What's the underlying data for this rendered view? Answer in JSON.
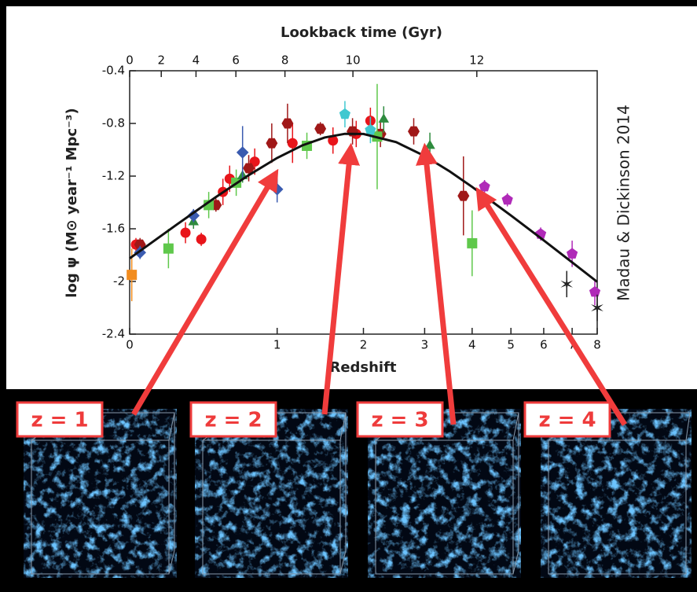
{
  "chart_data": {
    "type": "scatter",
    "x_label": "Redshift",
    "x2_label": "Lookback time (Gyr)",
    "y_label": "log ψ (M⊙ year⁻¹ Mpc⁻³)",
    "annotation": "Madau & Dickinson 2014",
    "xscale": "log1p",
    "xlim": [
      0,
      8
    ],
    "xticks": [
      0,
      1,
      2,
      3,
      4,
      5,
      6,
      7,
      8
    ],
    "x2ticks": [
      0,
      2,
      4,
      6,
      8,
      10,
      12
    ],
    "ylim": [
      -2.4,
      -0.4
    ],
    "yticks": [
      -2.4,
      -2,
      -1.6,
      -1.2,
      -0.8,
      -0.4
    ],
    "fit": {
      "color": "#111111",
      "x": [
        0,
        0.25,
        0.5,
        0.75,
        1,
        1.25,
        1.5,
        1.75,
        2,
        2.5,
        3,
        3.5,
        4,
        5,
        6,
        7,
        8
      ],
      "values": [
        -1.825,
        -1.566,
        -1.359,
        -1.193,
        -1.062,
        -0.967,
        -0.907,
        -0.879,
        -0.88,
        -0.942,
        -1.047,
        -1.164,
        -1.282,
        -1.499,
        -1.688,
        -1.855,
        -2.003
      ]
    },
    "series": [
      {
        "color": "#e8141a",
        "marker": "circle",
        "x": [
          0.03,
          0.3,
          0.4,
          0.55,
          0.6,
          0.8,
          1.15,
          1.6,
          2.1,
          1.9
        ],
        "values": [
          -1.72,
          -1.63,
          -1.68,
          -1.32,
          -1.22,
          -1.09,
          -0.95,
          -0.93,
          -0.78,
          -0.88
        ],
        "yerr": [
          0.05,
          0.08,
          0.05,
          0.1,
          0.1,
          0.1,
          0.15,
          0.1,
          0.1,
          0.1
        ]
      },
      {
        "color": "#a01818",
        "marker": "hexagon",
        "x": [
          0.05,
          0.5,
          0.75,
          0.95,
          1.1,
          1.45,
          1.85,
          2.25,
          2.8,
          3.8
        ],
        "values": [
          -1.72,
          -1.42,
          -1.14,
          -0.95,
          -0.8,
          -0.84,
          -0.86,
          -0.88,
          -0.86,
          -1.35
        ],
        "yerr": [
          0.05,
          0.05,
          0.1,
          0.15,
          0.15,
          0.05,
          0.1,
          0.1,
          0.1,
          0.3
        ]
      },
      {
        "color": "#5fc84b",
        "marker": "square",
        "x": [
          0.2,
          0.45,
          0.65,
          1.3,
          2.2,
          4.0
        ],
        "values": [
          -1.75,
          -1.42,
          -1.25,
          -0.97,
          -0.9,
          -1.71
        ],
        "yerr": [
          0.15,
          0.1,
          0.1,
          0.1,
          0.4,
          0.25
        ]
      },
      {
        "color": "#2e8b3e",
        "marker": "triangle",
        "x": [
          0.35,
          0.7,
          2.3,
          3.1
        ],
        "values": [
          -1.55,
          -1.2,
          -0.77,
          -0.97
        ],
        "yerr": [
          0.05,
          0.05,
          0.1,
          0.1
        ]
      },
      {
        "color": "#3a5bb0",
        "marker": "diamond",
        "x": [
          0.05,
          0.35,
          0.7,
          1.0
        ],
        "values": [
          -1.78,
          -1.5,
          -1.02,
          -1.3
        ],
        "yerr": [
          0.05,
          0.05,
          0.2,
          0.1
        ]
      },
      {
        "color": "#40c8d0",
        "marker": "pentagon",
        "x": [
          1.75,
          2.1
        ],
        "values": [
          -0.73,
          -0.85
        ],
        "yerr": [
          0.1,
          0.1
        ]
      },
      {
        "color": "#f28c1e",
        "marker": "square",
        "x": [
          0.01
        ],
        "values": [
          -1.95
        ],
        "yerr": [
          0.2
        ]
      },
      {
        "color": "#b02ab8",
        "marker": "pentagon",
        "x": [
          4.3,
          4.9,
          5.9,
          7.0,
          7.9
        ],
        "values": [
          -1.28,
          -1.38,
          -1.64,
          -1.79,
          -2.08
        ],
        "yerr": [
          0.05,
          0.05,
          0.05,
          0.1,
          0.1
        ]
      },
      {
        "color": "#222222",
        "marker": "star",
        "x": [
          6.8,
          8.0
        ],
        "values": [
          -2.02,
          -2.2
        ],
        "yerr": [
          0.1,
          0.1
        ]
      }
    ]
  },
  "panels": [
    "z = 1",
    "z = 2",
    "z = 3",
    "z = 4"
  ]
}
